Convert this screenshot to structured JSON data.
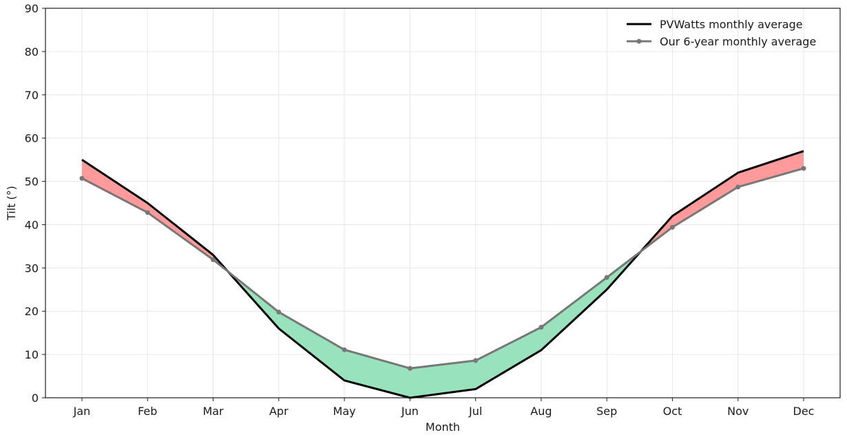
{
  "chart_data": {
    "type": "line",
    "title": "",
    "xlabel": "Month",
    "ylabel": "Tilt (°)",
    "ylim": [
      0,
      90
    ],
    "yticks": [
      0,
      10,
      20,
      30,
      40,
      50,
      60,
      70,
      80,
      90
    ],
    "grid": true,
    "legend_position": "top-right",
    "categories": [
      "Jan",
      "Feb",
      "Mar",
      "Apr",
      "May",
      "Jun",
      "Jul",
      "Aug",
      "Sep",
      "Oct",
      "Nov",
      "Dec"
    ],
    "series": [
      {
        "name": "PVWatts monthly average",
        "color": "#000000",
        "values": [
          55,
          45,
          33,
          16,
          4,
          0,
          2,
          11,
          25,
          42,
          52,
          57
        ]
      },
      {
        "name": "Our 6-year monthly average",
        "color": "#777777",
        "marker": "circle",
        "values": [
          50.7,
          42.8,
          31.9,
          19.8,
          11.1,
          6.8,
          8.6,
          16.3,
          27.8,
          39.4,
          48.7,
          53.0
        ]
      }
    ],
    "fill_colors": {
      "pvwatts_higher": "#ff9a9a",
      "ours_higher": "#98e2bc"
    }
  }
}
